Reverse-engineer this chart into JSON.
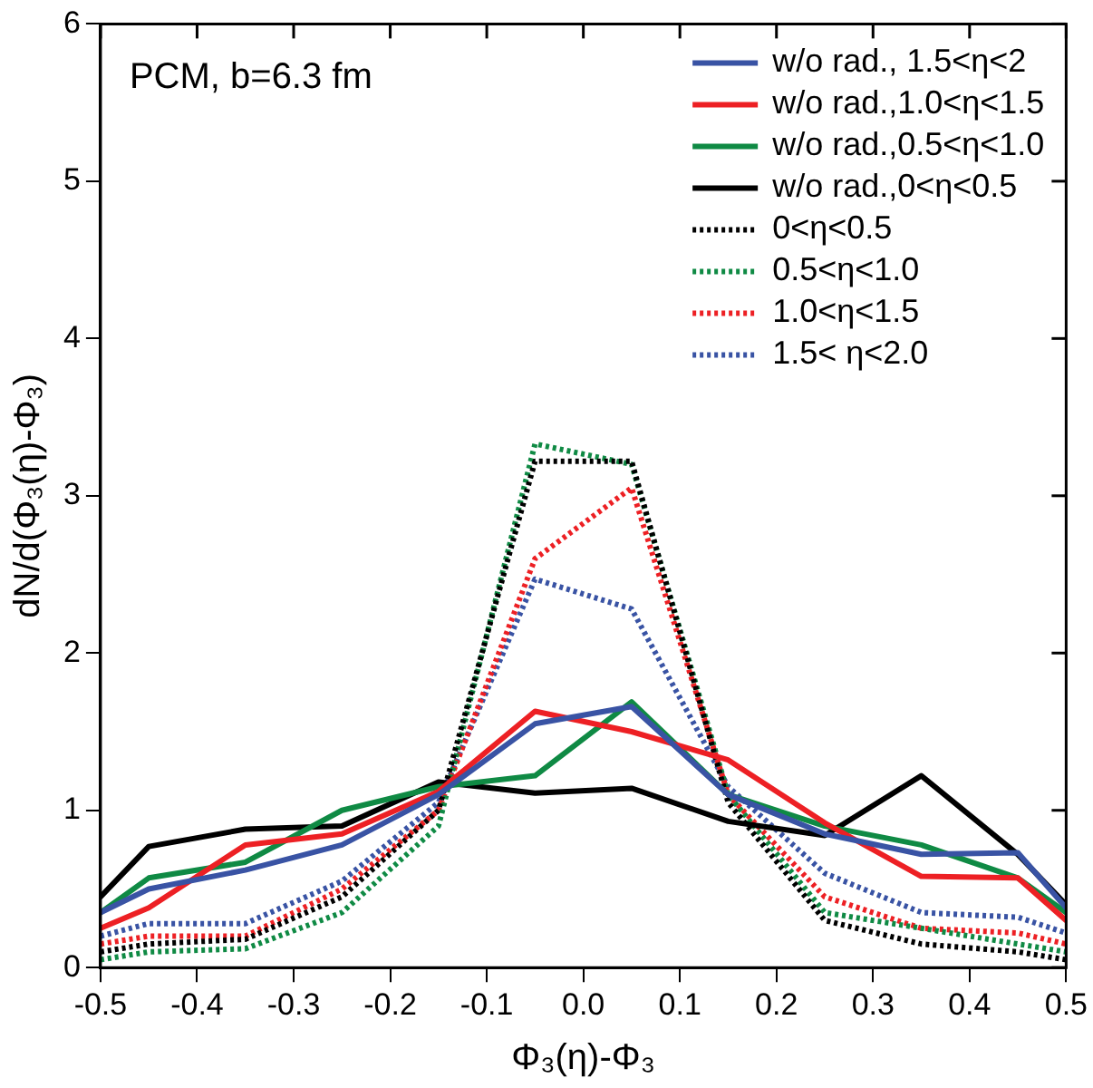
{
  "chart_data": {
    "type": "line",
    "xlabel": "Φ₃(η)-Φ₃",
    "ylabel": "dN/d(Φ₃(η)-Φ₃)",
    "annotations": [
      "PCM, b=6.3 fm"
    ],
    "x": [
      -0.5,
      -0.45,
      -0.35,
      -0.25,
      -0.15,
      -0.05,
      0.05,
      0.15,
      0.25,
      0.35,
      0.45,
      0.5
    ],
    "xlim": [
      -0.5,
      0.5
    ],
    "xticks": [
      -0.5,
      -0.4,
      -0.3,
      -0.2,
      -0.1,
      {
        "value": 0,
        "label": "0.0"
      },
      0.1,
      0.2,
      0.3,
      0.4,
      0.5
    ],
    "ylim": [
      0,
      6
    ],
    "yticks": [
      0,
      1,
      2,
      3,
      4,
      5,
      6
    ],
    "grid": false,
    "legend": "top right",
    "marker": "none",
    "series": [
      {
        "name": "w/o rad., 1.5<η<2",
        "color": "#3953a4",
        "line_style": "solid",
        "values": [
          0.35,
          0.5,
          0.62,
          0.78,
          1.1,
          1.55,
          1.66,
          1.1,
          0.85,
          0.72,
          0.73,
          0.38
        ]
      },
      {
        "name": "w/o rad.,1.0<η<1.5",
        "color": "#ed2024",
        "line_style": "solid",
        "values": [
          0.25,
          0.38,
          0.78,
          0.85,
          1.12,
          1.63,
          1.5,
          1.32,
          0.92,
          0.58,
          0.57,
          0.3
        ]
      },
      {
        "name": "w/o rad.,0.5<η<1.0",
        "color": "#0f8a44",
        "line_style": "solid",
        "values": [
          0.35,
          0.57,
          0.67,
          1.0,
          1.15,
          1.22,
          1.69,
          1.1,
          0.9,
          0.78,
          0.57,
          0.35
        ]
      },
      {
        "name": "w/o rad.,0<η<0.5",
        "color": "#000000",
        "line_style": "solid",
        "values": [
          0.45,
          0.77,
          0.88,
          0.9,
          1.18,
          1.11,
          1.14,
          0.93,
          0.84,
          1.22,
          0.72,
          0.4
        ]
      },
      {
        "name": "0<η<0.5",
        "color": "#000000",
        "line_style": "dotted",
        "values": [
          0.1,
          0.15,
          0.18,
          0.45,
          1.0,
          3.22,
          3.22,
          1.05,
          0.3,
          0.15,
          0.1,
          0.05
        ]
      },
      {
        "name": "0.5<η<1.0",
        "color": "#0f8a44",
        "line_style": "dotted",
        "values": [
          0.05,
          0.1,
          0.12,
          0.35,
          0.9,
          3.33,
          3.2,
          1.1,
          0.35,
          0.25,
          0.15,
          0.1
        ]
      },
      {
        "name": "1.0<η<1.5",
        "color": "#ed2024",
        "line_style": "dotted",
        "values": [
          0.15,
          0.2,
          0.2,
          0.5,
          1.0,
          2.6,
          3.05,
          1.1,
          0.45,
          0.25,
          0.22,
          0.15
        ]
      },
      {
        "name": "1.5< η<2.0",
        "color": "#3953a4",
        "line_style": "dotted",
        "values": [
          0.2,
          0.28,
          0.28,
          0.55,
          1.05,
          2.47,
          2.28,
          1.15,
          0.6,
          0.35,
          0.32,
          0.22
        ]
      }
    ]
  }
}
